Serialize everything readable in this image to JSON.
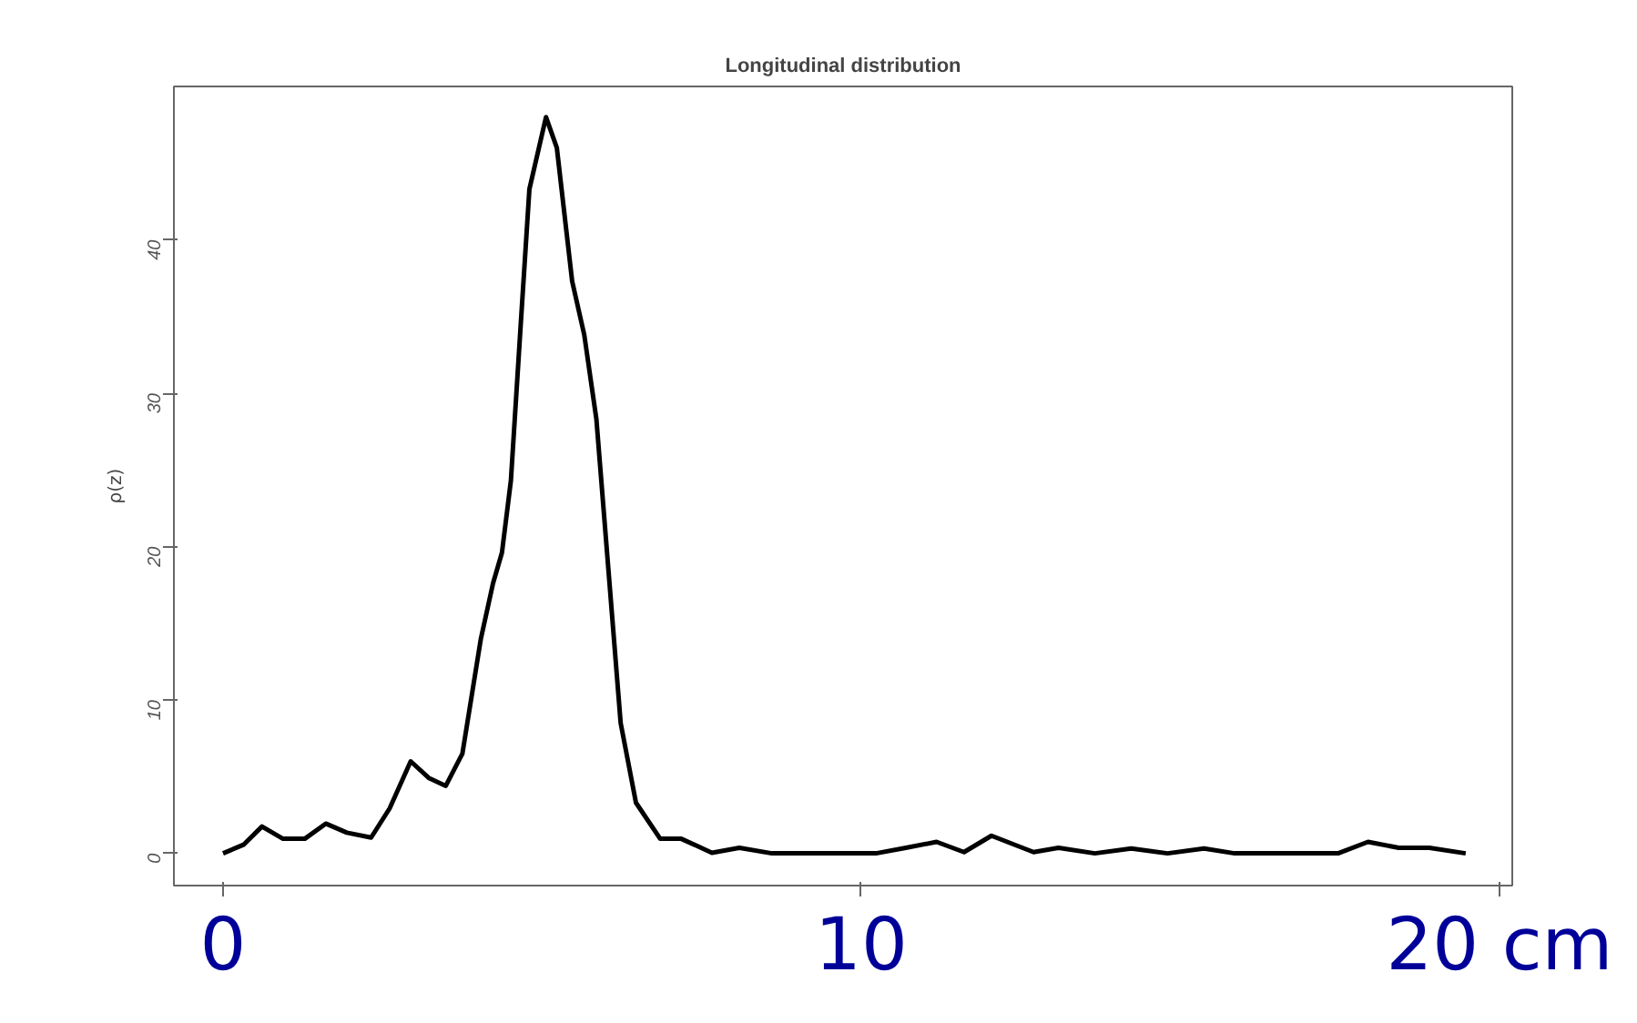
{
  "chart_data": {
    "type": "line",
    "title": "Longitudinal distribution",
    "ylabel": "ρ(z)",
    "x": [
      0,
      0.32,
      0.61,
      0.94,
      1.28,
      1.61,
      1.94,
      2.32,
      2.61,
      2.94,
      3.23,
      3.49,
      3.75,
      4.04,
      4.23,
      4.37,
      4.51,
      4.66,
      4.8,
      5.06,
      5.23,
      5.47,
      5.66,
      5.85,
      6.04,
      6.23,
      6.47,
      6.85,
      7.18,
      7.66,
      8.09,
      8.6,
      10.23,
      10.7,
      11.18,
      11.61,
      12.04,
      12.7,
      13.09,
      13.66,
      14.23,
      14.8,
      15.37,
      15.85,
      17.47,
      17.94,
      18.42,
      18.9,
      19.47
    ],
    "series": [
      {
        "color": "#000000",
        "values": [
          0,
          0.56,
          1.75,
          0.95,
          0.95,
          1.94,
          1.35,
          1.03,
          2.93,
          6.0,
          4.9,
          4.4,
          6.5,
          14.0,
          17.6,
          19.6,
          24.3,
          34.2,
          43.3,
          48.0,
          46.0,
          37.3,
          33.8,
          28.3,
          18.4,
          8.5,
          3.3,
          0.95,
          0.95,
          0.04,
          0.36,
          0,
          0,
          0.36,
          0.75,
          0.08,
          1.15,
          0.08,
          0.36,
          0,
          0.32,
          0,
          0.32,
          0,
          0,
          0.75,
          0.36,
          0.36,
          0
        ]
      }
    ],
    "xlim": [
      -0.77,
      20.2
    ],
    "ylim": [
      -2.1,
      50
    ],
    "xticks": [
      0,
      10,
      {
        "value": 20,
        "label": "20 cm"
      }
    ],
    "yticks": [
      0,
      10,
      20,
      30,
      40
    ],
    "grid": false
  }
}
